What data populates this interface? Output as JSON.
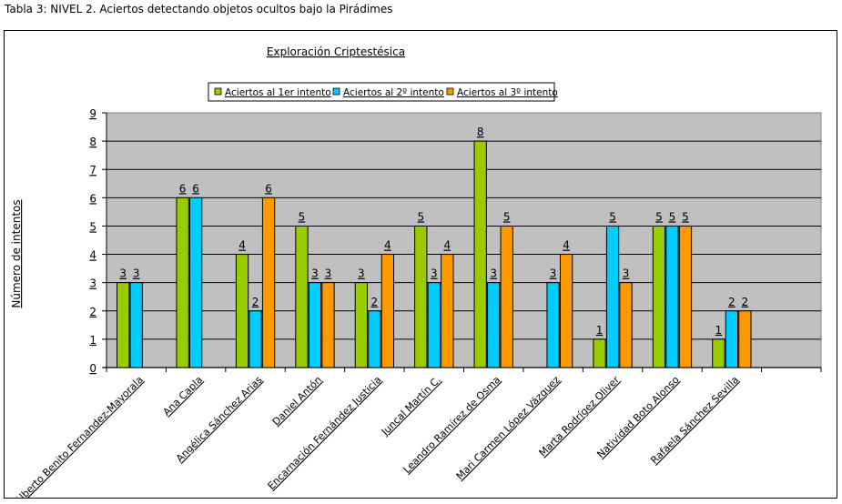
{
  "page": {
    "caption": "Tabla 3: NIVEL 2. Aciertos detectando objetos ocultos bajo la Pirádimes"
  },
  "chart_data": {
    "type": "bar",
    "title": "Exploración Criptestésica",
    "xlabel": "",
    "ylabel": "Número de intentos",
    "ylim": [
      0,
      9
    ],
    "yticks": [
      0,
      1,
      2,
      3,
      4,
      5,
      6,
      7,
      8,
      9
    ],
    "grid": true,
    "legend_position": "top-center",
    "categories": [
      "Alberto Benito Fernandez-Mayorala",
      "Ana Capla",
      "Angélica Sánchez Arias",
      "Daniel Antón",
      "Encarnación Fernández Justicia",
      "Juncal Martín C.",
      "Leandro Ramírez de Osma",
      "Mari Carmen López Vázquez",
      "Marta Rodrígez Oliver",
      "Natividad Boto Alonso",
      "Rafaela Sánchez Sevilla",
      ""
    ],
    "series": [
      {
        "name": "Aciertos al 1er intento",
        "color": "#99CC00",
        "values": [
          3,
          6,
          4,
          5,
          3,
          5,
          8,
          null,
          1,
          5,
          1,
          null
        ]
      },
      {
        "name": "Aciertos al 2º intento",
        "color": "#00CCFF",
        "values": [
          3,
          6,
          2,
          3,
          2,
          3,
          3,
          3,
          5,
          5,
          2,
          null
        ]
      },
      {
        "name": "Aciertos al 3º intento",
        "color": "#FF9900",
        "values": [
          null,
          null,
          6,
          3,
          4,
          4,
          5,
          4,
          3,
          5,
          2,
          null
        ]
      }
    ],
    "plot_background": "#C0C0C0"
  }
}
